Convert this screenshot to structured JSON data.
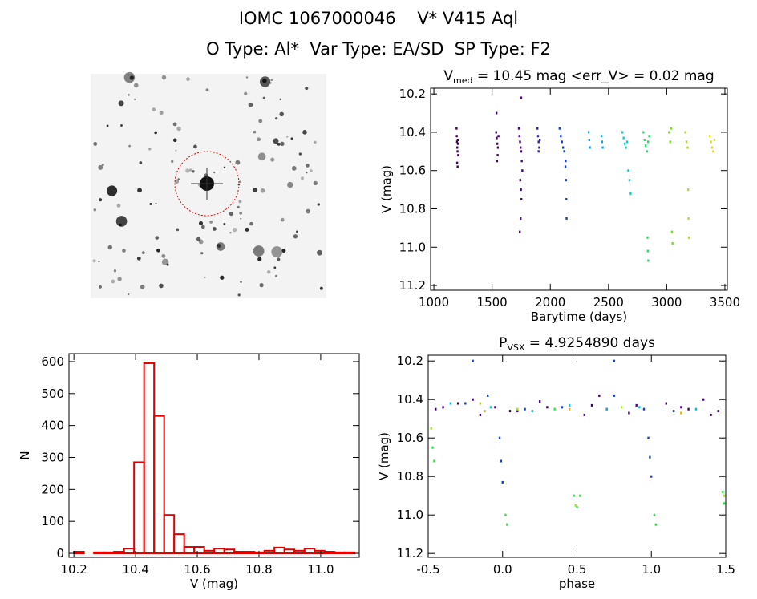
{
  "figure": {
    "title": "IOMC 1067000046    V* V415 Aql",
    "subtitle": "O Type: Al*  Var Type: EA/SD  SP Type: F2"
  },
  "chart_data": [
    {
      "type": "scatter",
      "title": "V",
      "title_sub": "med",
      "title_tail": " = 10.45 mag <err_V> = 0.02 mag",
      "x_label": "Barytime (days)",
      "y_label": "V (mag)",
      "xlim": [
        972,
        3521
      ],
      "xticks": [
        1000,
        1500,
        2000,
        2500,
        3000,
        3500
      ],
      "ylim": [
        11.225,
        10.17
      ],
      "yticks": [
        10.2,
        10.4,
        10.6,
        10.8,
        {
          "value": 11,
          "label": "11.0"
        },
        11.2
      ],
      "series": [
        {
          "color": "#3b0058",
          "x": [
            1195,
            1197,
            1199,
            1201,
            1203,
            1205,
            1207,
            1209,
            1200,
            1204
          ],
          "y": [
            10.38,
            10.42,
            10.45,
            10.48,
            10.5,
            10.44,
            10.46,
            10.52,
            10.56,
            10.58
          ]
        },
        {
          "color": "#45006a",
          "x": [
            1535,
            1540,
            1545,
            1550,
            1555,
            1548,
            1538,
            1543
          ],
          "y": [
            10.4,
            10.43,
            10.46,
            10.48,
            10.42,
            10.52,
            10.3,
            10.55
          ]
        },
        {
          "color": "#4a0090",
          "x": [
            1730,
            1735,
            1740,
            1745,
            1750,
            1755,
            1760,
            1742,
            1748,
            1752,
            1745,
            1738,
            1750
          ],
          "y": [
            10.38,
            10.42,
            10.45,
            10.48,
            10.5,
            10.55,
            10.6,
            10.65,
            10.7,
            10.75,
            10.85,
            10.92,
            10.22
          ]
        },
        {
          "color": "#2a20b0",
          "x": [
            1890,
            1895,
            1900,
            1905,
            1910,
            1900
          ],
          "y": [
            10.38,
            10.42,
            10.45,
            10.48,
            10.44,
            10.5
          ]
        },
        {
          "color": "#1040d0",
          "x": [
            2080,
            2090,
            2100,
            2110,
            2120,
            2130,
            2135,
            2138,
            2140,
            2132
          ],
          "y": [
            10.38,
            10.42,
            10.45,
            10.48,
            10.5,
            10.58,
            10.65,
            10.75,
            10.85,
            10.55
          ]
        },
        {
          "color": "#00a8e8",
          "x": [
            2330,
            2335,
            2340,
            2440,
            2445,
            2450
          ],
          "y": [
            10.4,
            10.44,
            10.48,
            10.42,
            10.45,
            10.48
          ]
        },
        {
          "color": "#00d0d8",
          "x": [
            2620,
            2630,
            2640,
            2650,
            2660,
            2670,
            2680,
            2690
          ],
          "y": [
            10.4,
            10.43,
            10.46,
            10.48,
            10.45,
            10.6,
            10.65,
            10.72
          ]
        },
        {
          "color": "#20e060",
          "x": [
            2800,
            2810,
            2820,
            2830,
            2840,
            2850,
            2835,
            2838,
            2842
          ],
          "y": [
            10.4,
            10.44,
            10.47,
            10.5,
            10.45,
            10.42,
            10.95,
            11.02,
            11.07
          ]
        },
        {
          "color": "#70e020",
          "x": [
            3020,
            3030,
            3040,
            3045,
            3050
          ],
          "y": [
            10.4,
            10.45,
            10.38,
            10.92,
            10.98
          ]
        },
        {
          "color": "#a8e020",
          "x": [
            3160,
            3170,
            3180,
            3185,
            3188,
            3190
          ],
          "y": [
            10.4,
            10.45,
            10.48,
            10.7,
            10.85,
            10.95
          ]
        },
        {
          "color": "#e0e000",
          "x": [
            3370,
            3380,
            3390,
            3400,
            3410
          ],
          "y": [
            10.42,
            10.45,
            10.48,
            10.5,
            10.44
          ]
        }
      ]
    },
    {
      "type": "histogram",
      "x_label": "V (mag)",
      "y_label": "N",
      "color": "#e00000",
      "xlim": [
        10.184,
        11.125
      ],
      "xticks": [
        10.2,
        10.4,
        10.6,
        10.8,
        {
          "value": 11,
          "label": "11.0"
        }
      ],
      "ylim": [
        -12.5,
        625
      ],
      "yticks": [
        0,
        100,
        200,
        300,
        400,
        500,
        600
      ],
      "bins": [
        10.2,
        10.2325,
        10.265,
        10.2975,
        10.33,
        10.3625,
        10.395,
        10.4275,
        10.46,
        10.4925,
        10.525,
        10.5575,
        10.59,
        10.6225,
        10.655,
        10.6875,
        10.72,
        10.7525,
        10.785,
        10.8175,
        10.85,
        10.8825,
        10.915,
        10.9475,
        10.98,
        11.0125,
        11.045,
        11.0775,
        11.11
      ],
      "values": [
        5,
        0,
        3,
        3,
        5,
        15,
        285,
        595,
        430,
        120,
        60,
        20,
        20,
        8,
        15,
        12,
        5,
        5,
        3,
        8,
        18,
        12,
        8,
        15,
        8,
        5,
        3,
        3
      ]
    },
    {
      "type": "scatter",
      "title": "P",
      "title_sub": "VSX",
      "title_tail": " = 4.9254890 days",
      "x_label": "phase",
      "y_label": "V (mag)",
      "xlim": [
        -0.5,
        1.5
      ],
      "xticks": [
        -0.5,
        {
          "value": 0,
          "label": "0.0"
        },
        0.5,
        {
          "value": 1,
          "label": "1.0"
        },
        1.5
      ],
      "ylim": [
        11.22,
        10.17
      ],
      "yticks": [
        10.2,
        10.4,
        10.6,
        10.8,
        {
          "value": 11,
          "label": "11.0"
        },
        11.2
      ],
      "series": [
        {
          "color": "#3b0058",
          "x": [
            -0.45,
            -0.3,
            -0.15,
            0.05,
            0.3,
            0.6,
            0.85,
            1.1,
            1.25,
            1.4,
            0.65,
            -0.05
          ],
          "y": [
            10.45,
            10.42,
            10.48,
            10.46,
            10.44,
            10.43,
            10.47,
            10.42,
            10.45,
            10.48,
            10.38,
            10.44
          ]
        },
        {
          "color": "#4a0090",
          "x": [
            -0.4,
            -0.2,
            0.1,
            0.25,
            0.55,
            0.7,
            0.9,
            1.2,
            1.35,
            1.45
          ],
          "y": [
            10.44,
            10.4,
            10.46,
            10.41,
            10.48,
            10.45,
            10.43,
            10.44,
            10.4,
            10.46
          ]
        },
        {
          "color": "#1040d0",
          "x": [
            -0.25,
            -0.1,
            -0.02,
            -0.01,
            0.0,
            0.15,
            0.4,
            0.75,
            0.95,
            0.98,
            0.99,
            1.0,
            1.15,
            -0.2,
            0.75
          ],
          "y": [
            10.42,
            10.38,
            10.6,
            10.72,
            10.83,
            10.45,
            10.44,
            10.38,
            10.45,
            10.6,
            10.7,
            10.8,
            10.46,
            10.2,
            10.2
          ]
        },
        {
          "color": "#00c0e0",
          "x": [
            -0.35,
            -0.08,
            0.2,
            0.45,
            0.7,
            0.92,
            1.3
          ],
          "y": [
            10.42,
            10.44,
            10.46,
            10.43,
            10.45,
            10.44,
            10.45
          ]
        },
        {
          "color": "#30e040",
          "x": [
            -0.47,
            -0.46,
            0.02,
            0.03,
            0.48,
            0.5,
            0.52,
            1.02,
            1.03,
            1.48,
            1.49,
            0.35
          ],
          "y": [
            10.65,
            10.72,
            11.0,
            11.05,
            10.9,
            10.96,
            10.9,
            11.0,
            11.05,
            10.88,
            10.94,
            10.45
          ]
        },
        {
          "color": "#a0e020",
          "x": [
            -0.48,
            0.1,
            0.49,
            0.8,
            1.49,
            -0.15
          ],
          "y": [
            10.55,
            10.45,
            10.95,
            10.44,
            10.9,
            10.42
          ]
        },
        {
          "color": "#e0b000",
          "x": [
            -0.12,
            0.45,
            1.2
          ],
          "y": [
            10.46,
            10.45,
            10.47
          ]
        }
      ]
    }
  ]
}
